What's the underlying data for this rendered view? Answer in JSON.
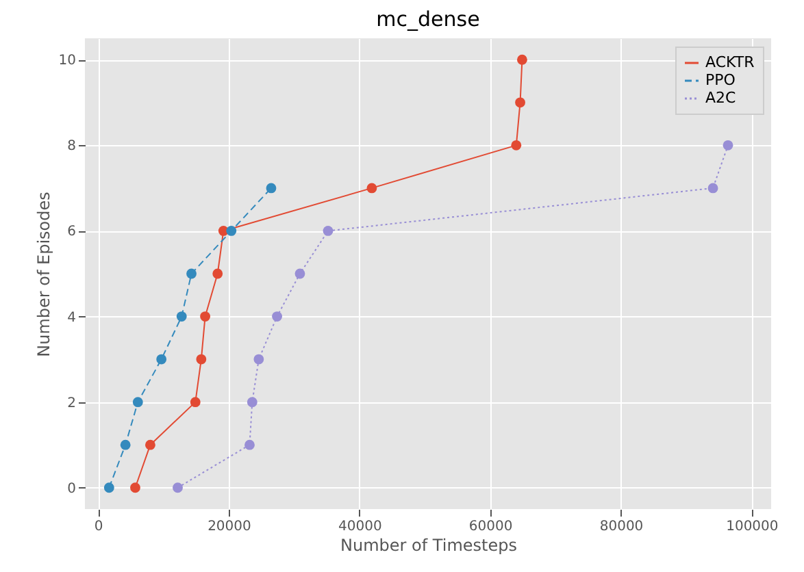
{
  "chart_data": {
    "type": "line",
    "title": "mc_dense",
    "xlabel": "Number of Timesteps",
    "ylabel": "Number of Episodes",
    "xlim": [
      -2000,
      103000
    ],
    "ylim": [
      -0.5,
      10.5
    ],
    "xticks": [
      0,
      20000,
      40000,
      60000,
      80000,
      100000
    ],
    "yticks": [
      0,
      2,
      4,
      6,
      8,
      10
    ],
    "grid": true,
    "legend": "top right",
    "marker": "circle",
    "series": [
      {
        "name": "ACKTR",
        "color": "#e24a33",
        "line_style": "solid",
        "x": [
          5700,
          8000,
          14900,
          15800,
          16400,
          18300,
          19200,
          41900,
          64000,
          64600,
          64900
        ],
        "values": [
          0,
          1,
          2,
          3,
          4,
          5,
          6,
          7,
          8,
          9,
          10
        ]
      },
      {
        "name": "PPO",
        "color": "#348abd",
        "line_style": "dashed",
        "x": [
          1700,
          4200,
          6100,
          9700,
          12800,
          14300,
          20400,
          26500
        ],
        "values": [
          0,
          1,
          2,
          3,
          4,
          5,
          6,
          7
        ]
      },
      {
        "name": "A2C",
        "color": "#988ed5",
        "line_style": "dotted",
        "x": [
          12200,
          23200,
          23600,
          24600,
          27400,
          30900,
          35200,
          94100,
          96400
        ],
        "values": [
          0,
          1,
          2,
          3,
          4,
          5,
          6,
          7,
          8
        ]
      }
    ]
  }
}
